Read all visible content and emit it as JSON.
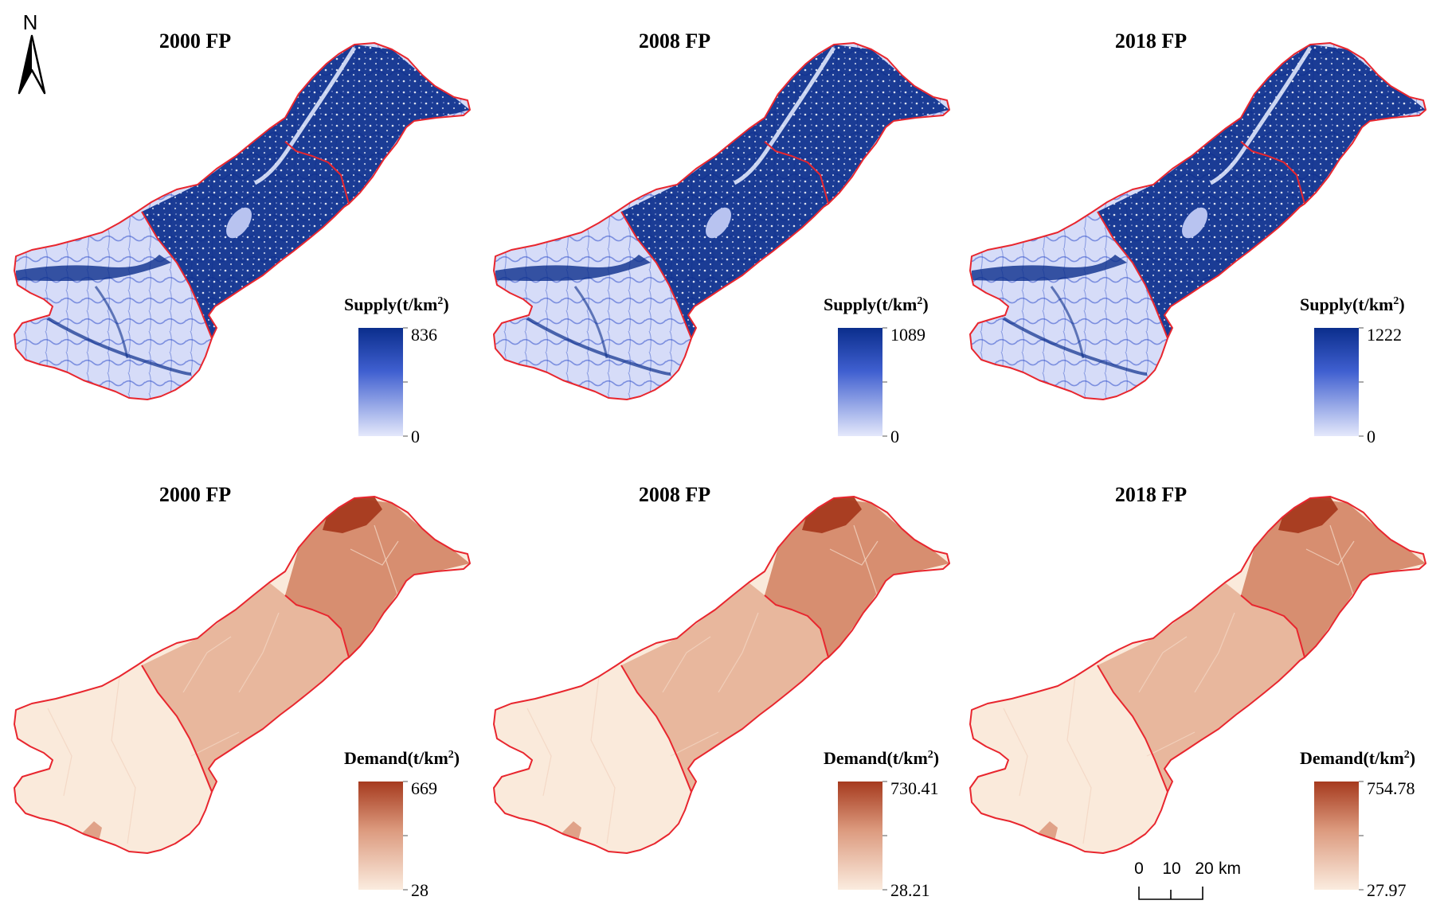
{
  "north_arrow": {
    "label": "N"
  },
  "scale_bar": {
    "ticks": [
      "0",
      "10",
      "20"
    ],
    "unit": "km"
  },
  "panels": [
    {
      "id": "supply-2000",
      "row": "supply",
      "col": 0,
      "title": "2000  FP",
      "legend_title": "Supply(t/km",
      "legend_sup": "2",
      "legend_close": ")",
      "max_label": "836",
      "min_label": "0",
      "color_high": "#0b2e8c",
      "color_mid": "#3f5fd0",
      "color_low": "#d6dcf8",
      "intensity": 0.35
    },
    {
      "id": "supply-2008",
      "row": "supply",
      "col": 1,
      "title": "2008  FP",
      "legend_title": "Supply(t/km",
      "legend_sup": "2",
      "legend_close": ")",
      "max_label": "1089",
      "min_label": "0",
      "color_high": "#0b2e8c",
      "color_mid": "#3f5fd0",
      "color_low": "#d6dcf8",
      "intensity": 0.35
    },
    {
      "id": "supply-2018",
      "row": "supply",
      "col": 2,
      "title": "2018  FP",
      "legend_title": "Supply(t/km",
      "legend_sup": "2",
      "legend_close": ")",
      "max_label": "1222",
      "min_label": "0",
      "color_high": "#0b2e8c",
      "color_mid": "#3f5fd0",
      "color_low": "#d6dcf8",
      "intensity": 0.35
    },
    {
      "id": "demand-2000",
      "row": "demand",
      "col": 0,
      "title": "2000  FP",
      "legend_title": "Demand(t/km",
      "legend_sup": "2",
      "legend_close": ")",
      "max_label": "669",
      "min_label": "28",
      "color_high": "#a63a1e",
      "color_mid": "#d9967a",
      "color_low": "#faeadb",
      "intensity": 0.5
    },
    {
      "id": "demand-2008",
      "row": "demand",
      "col": 1,
      "title": "2008  FP",
      "legend_title": "Demand(t/km",
      "legend_sup": "2",
      "legend_close": ")",
      "max_label": "730.41",
      "min_label": "28.21",
      "color_high": "#a63a1e",
      "color_mid": "#d9967a",
      "color_low": "#faeadb",
      "intensity": 0.45
    },
    {
      "id": "demand-2018",
      "row": "demand",
      "col": 2,
      "title": "2018  FP",
      "legend_title": "Demand(t/km",
      "legend_sup": "2",
      "legend_close": ")",
      "max_label": "754.78",
      "min_label": "27.97",
      "color_high": "#a63a1e",
      "color_mid": "#d9967a",
      "color_low": "#faeadb",
      "intensity": 0.55
    }
  ]
}
